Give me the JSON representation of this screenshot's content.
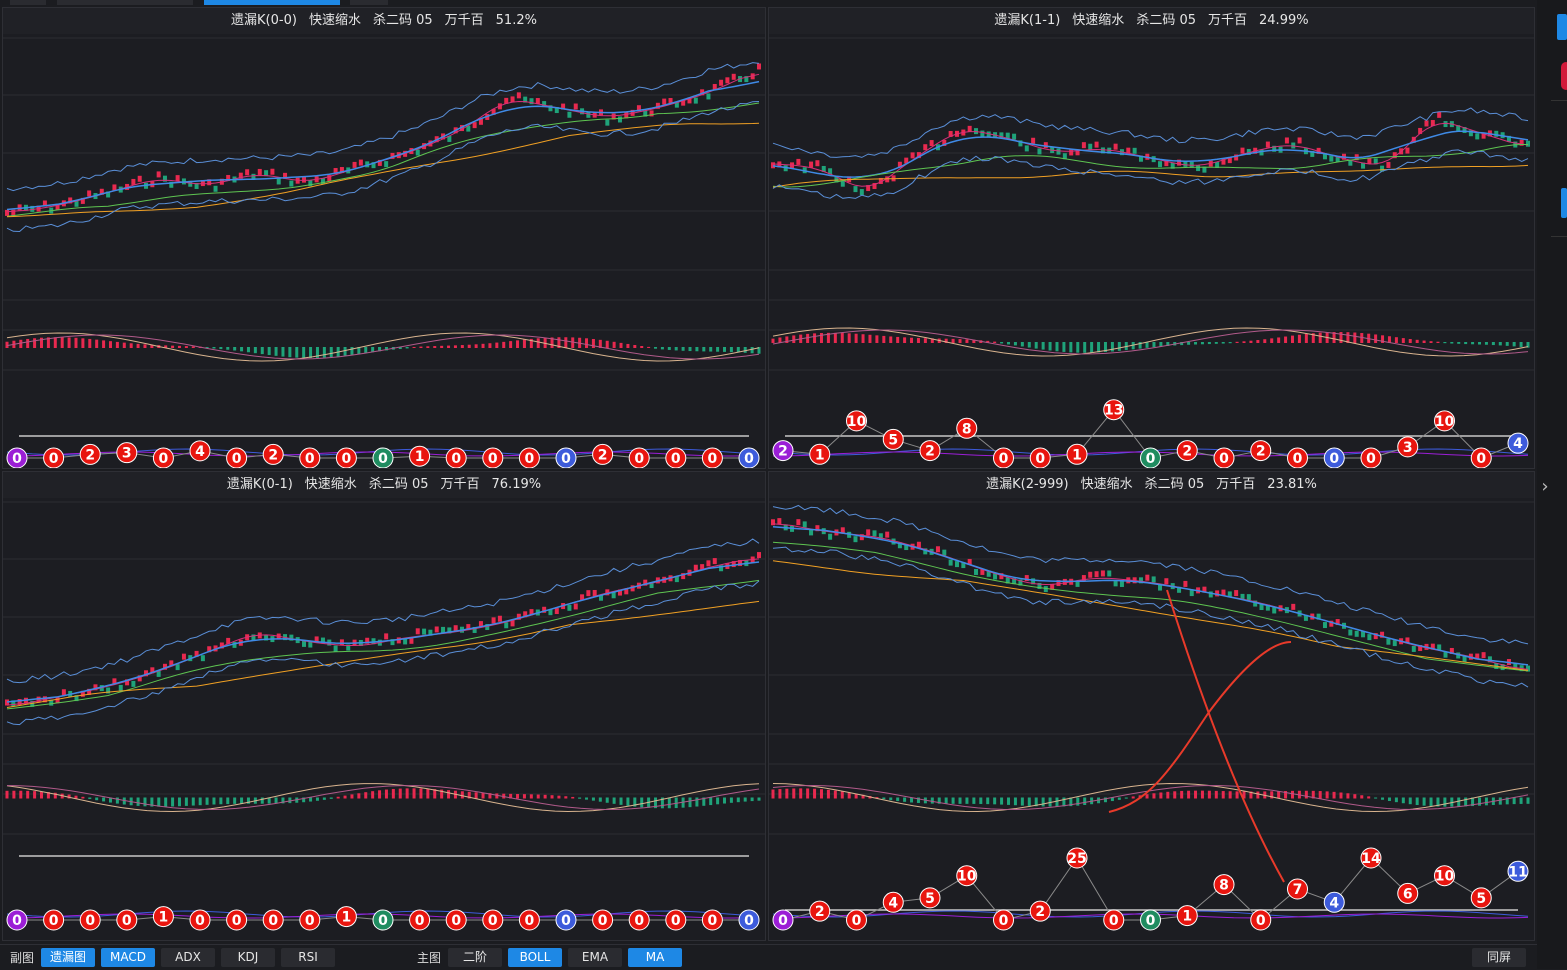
{
  "panels": [
    {
      "name": "遗漏K(0-0)",
      "mode": "快速缩水",
      "kill": "杀二码 05",
      "pos": "万千百",
      "pct": "51.2%"
    },
    {
      "name": "遗漏K(1-1)",
      "mode": "快速缩水",
      "kill": "杀二码 05",
      "pos": "万千百",
      "pct": "24.99%"
    },
    {
      "name": "遗漏K(0-1)",
      "mode": "快速缩水",
      "kill": "杀二码 05",
      "pos": "万千百",
      "pct": "76.19%"
    },
    {
      "name": "遗漏K(2-999)",
      "mode": "快速缩水",
      "kill": "杀二码 05",
      "pos": "万千百",
      "pct": "23.81%"
    }
  ],
  "bottom": {
    "sub_label": "副图",
    "sub_buttons": [
      "遗漏图",
      "MACD",
      "ADX",
      "KDJ",
      "RSI"
    ],
    "main_label": "主图",
    "main_buttons": [
      "二阶",
      "BOLL",
      "EMA",
      "MA"
    ],
    "fullscreen": "同屏"
  },
  "badges": {
    "p0": [
      "0",
      "0",
      "2",
      "3",
      "0",
      "4",
      "0",
      "2",
      "0",
      "0",
      "0",
      "1",
      "0",
      "0",
      "0",
      "0",
      "2",
      "0",
      "0",
      "0",
      "0"
    ],
    "p1": [
      "2",
      "1",
      "10",
      "5",
      "2",
      "8",
      "0",
      "0",
      "1",
      "13",
      "0",
      "2",
      "0",
      "2",
      "0",
      "0",
      "0",
      "3",
      "10",
      "0",
      "4"
    ],
    "p2": [
      "0",
      "0",
      "0",
      "0",
      "1",
      "0",
      "0",
      "0",
      "0",
      "1",
      "0",
      "0",
      "0",
      "0",
      "0",
      "0",
      "0",
      "0",
      "0",
      "0",
      "0"
    ],
    "p3": [
      "0",
      "2",
      "0",
      "4",
      "5",
      "10",
      "0",
      "2",
      "25",
      "0",
      "0",
      "1",
      "8",
      "0",
      "7",
      "4",
      "14",
      "6",
      "10",
      "5",
      "11"
    ]
  },
  "colors": {
    "up": "#e8294f",
    "down": "#1fa37a",
    "badge_red": "#e8150f",
    "badge_blue": "#3d5bdb",
    "badge_green": "#1f8c60",
    "badge_purple": "#9b1ed6",
    "accent": "#1e88e5"
  }
}
